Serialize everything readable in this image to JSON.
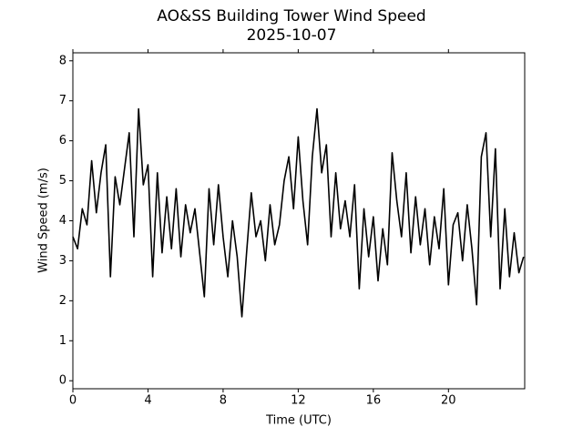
{
  "chart_data": {
    "type": "line",
    "title": "AO&SS Building Tower Wind Speed",
    "subtitle": "2025-10-07",
    "x_label": "Time (UTC)",
    "y_label": "Wind Speed (m/s)",
    "xlim": [
      0,
      24.06
    ],
    "ylim": [
      -0.2,
      8.2
    ],
    "xticks": [
      0,
      4,
      8,
      12,
      16,
      20
    ],
    "yticks": [
      0,
      1,
      2,
      3,
      4,
      5,
      6,
      7,
      8
    ],
    "grid": false,
    "series": [
      {
        "name": "Wind Speed",
        "color": "#000000",
        "x": [
          0,
          0.25,
          0.5,
          0.75,
          1,
          1.25,
          1.5,
          1.75,
          2,
          2.25,
          2.5,
          2.75,
          3,
          3.25,
          3.5,
          3.75,
          4,
          4.25,
          4.5,
          4.75,
          5,
          5.25,
          5.5,
          5.75,
          6,
          6.25,
          6.5,
          6.75,
          7,
          7.25,
          7.5,
          7.75,
          8,
          8.25,
          8.5,
          8.75,
          9,
          9.25,
          9.5,
          9.75,
          10,
          10.25,
          10.5,
          10.75,
          11,
          11.25,
          11.5,
          11.75,
          12,
          12.25,
          12.5,
          12.75,
          13,
          13.25,
          13.5,
          13.75,
          14,
          14.25,
          14.5,
          14.75,
          15,
          15.25,
          15.5,
          15.75,
          16,
          16.25,
          16.5,
          16.75,
          17,
          17.25,
          17.5,
          17.75,
          18,
          18.25,
          18.5,
          18.75,
          19,
          19.25,
          19.5,
          19.75,
          20,
          20.25,
          20.5,
          20.75,
          21,
          21.25,
          21.5,
          21.75,
          22,
          22.25,
          22.5,
          22.75,
          23,
          23.25,
          23.5,
          23.75,
          24
        ],
        "values": [
          3.6,
          3.3,
          4.3,
          3.9,
          5.5,
          4.2,
          5.2,
          5.9,
          2.6,
          5.1,
          4.4,
          5.3,
          6.2,
          3.6,
          6.8,
          4.9,
          5.4,
          2.6,
          5.2,
          3.2,
          4.6,
          3.3,
          4.8,
          3.1,
          4.4,
          3.7,
          4.3,
          3.2,
          2.1,
          4.8,
          3.4,
          4.9,
          3.6,
          2.6,
          4.0,
          3.1,
          1.6,
          3.2,
          4.7,
          3.6,
          4.0,
          3.0,
          4.4,
          3.4,
          3.9,
          5.0,
          5.6,
          4.3,
          6.1,
          4.5,
          3.4,
          5.6,
          6.8,
          5.2,
          5.9,
          3.6,
          5.2,
          3.8,
          4.5,
          3.6,
          4.9,
          2.3,
          4.3,
          3.1,
          4.1,
          2.5,
          3.8,
          2.9,
          5.7,
          4.5,
          3.6,
          5.2,
          3.2,
          4.6,
          3.4,
          4.3,
          2.9,
          4.1,
          3.3,
          4.8,
          2.4,
          3.9,
          4.2,
          3.0,
          4.4,
          3.3,
          1.9,
          5.6,
          6.2,
          3.6,
          5.8,
          2.3,
          4.3,
          2.6,
          3.7,
          2.7,
          3.1
        ]
      }
    ]
  }
}
